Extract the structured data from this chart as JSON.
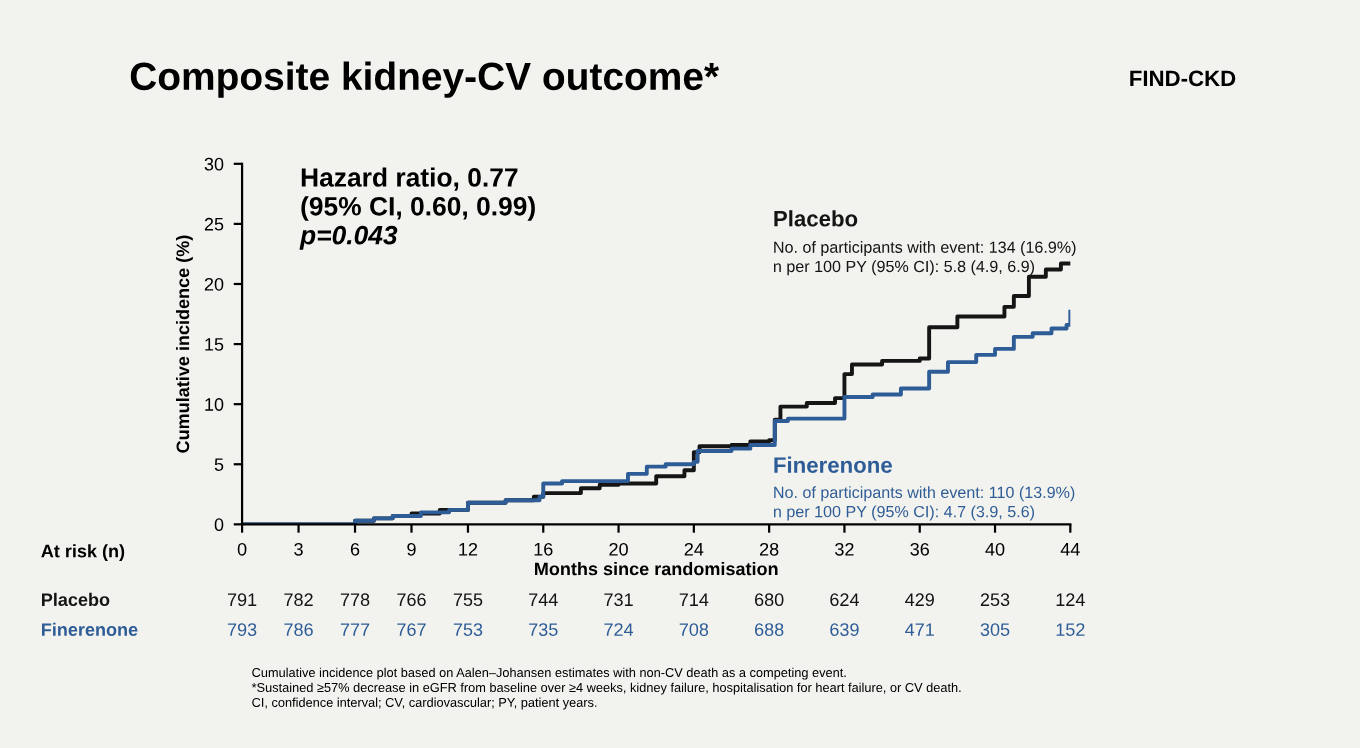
{
  "chart_data": {
    "type": "step",
    "title": "Composite kidney-CV outcome*",
    "xlabel": "Months since randomisation",
    "ylabel": "Cumulative incidence (%)",
    "xlim": [
      0,
      44
    ],
    "xticks": [
      0,
      3,
      6,
      9,
      12,
      16,
      20,
      24,
      28,
      32,
      36,
      40,
      44
    ],
    "ylim": [
      0,
      30
    ],
    "yticks": [
      0,
      5,
      10,
      15,
      20,
      25,
      30
    ],
    "grid": false,
    "legend": false,
    "line_style": "solid",
    "marker": "none",
    "series": [
      {
        "name": "Placebo",
        "color": "#151515",
        "x": [
          0,
          6,
          7,
          8,
          9,
          10.5,
          12,
          14,
          15.5,
          16,
          18,
          19,
          20,
          22,
          23.5,
          24,
          24.3,
          26,
          27,
          28,
          28.3,
          28.6,
          30,
          31.5,
          32,
          32.4,
          34,
          36,
          36.5,
          38,
          40.5,
          41,
          41.8,
          42.7,
          43.5,
          44
        ],
        "values": [
          0,
          0.3,
          0.5,
          0.7,
          0.9,
          1.2,
          1.8,
          2.0,
          2.3,
          2.6,
          3.0,
          3.3,
          3.4,
          4.0,
          4.5,
          6.0,
          6.5,
          6.6,
          6.9,
          7.0,
          8.7,
          9.8,
          10.1,
          10.5,
          12.5,
          13.3,
          13.6,
          13.8,
          16.4,
          17.3,
          18.1,
          19.0,
          20.6,
          21.2,
          21.7,
          21.7
        ]
      },
      {
        "name": "Finerenone",
        "color": "#2d5c96",
        "x": [
          0,
          6,
          7,
          8,
          9.5,
          11,
          12,
          14,
          15.8,
          16,
          17,
          20.5,
          21.5,
          22.5,
          24,
          24.2,
          26,
          27,
          28.3,
          29,
          32,
          33.5,
          35,
          36.5,
          37.5,
          39,
          40,
          41,
          42,
          43,
          43.8,
          44
        ],
        "values": [
          0,
          0.3,
          0.5,
          0.7,
          1.0,
          1.2,
          1.8,
          2.0,
          2.3,
          3.4,
          3.6,
          4.2,
          4.8,
          5.0,
          5.2,
          6.1,
          6.3,
          6.6,
          8.6,
          8.8,
          10.6,
          10.8,
          11.3,
          12.7,
          13.5,
          14.1,
          14.6,
          15.6,
          15.9,
          16.3,
          16.6,
          17.7
        ]
      }
    ],
    "annotations": [
      "Hazard ratio, 0.77",
      "(95% CI, 0.60, 0.99)",
      "p=0.043",
      "No. of participants with event: 134 (16.9%)",
      "n per 100 PY (95% CI): 5.8 (4.9, 6.9)",
      "No. of participants with event: 110 (13.9%)",
      "n per 100 PY (95% CI): 4.7 (3.9, 5.6)",
      "At risk (n)",
      "791",
      "782",
      "778",
      "766",
      "755",
      "744",
      "731",
      "714",
      "680",
      "624",
      "429",
      "253",
      "124",
      "793",
      "786",
      "777",
      "767",
      "753",
      "735",
      "724",
      "708",
      "688",
      "639",
      "471",
      "305",
      "152",
      "Cumulative incidence plot based on Aalen–Johansen estimates with non-CV death as a competing event.",
      "*Sustained ≥57% decrease in eGFR from baseline over ≥4 weeks, kidney failure, hospitalisation for heart failure, or CV death.",
      "CI, confidence interval; CV, cardiovascular; PY, patient years.",
      "FIND-CKD"
    ]
  }
}
